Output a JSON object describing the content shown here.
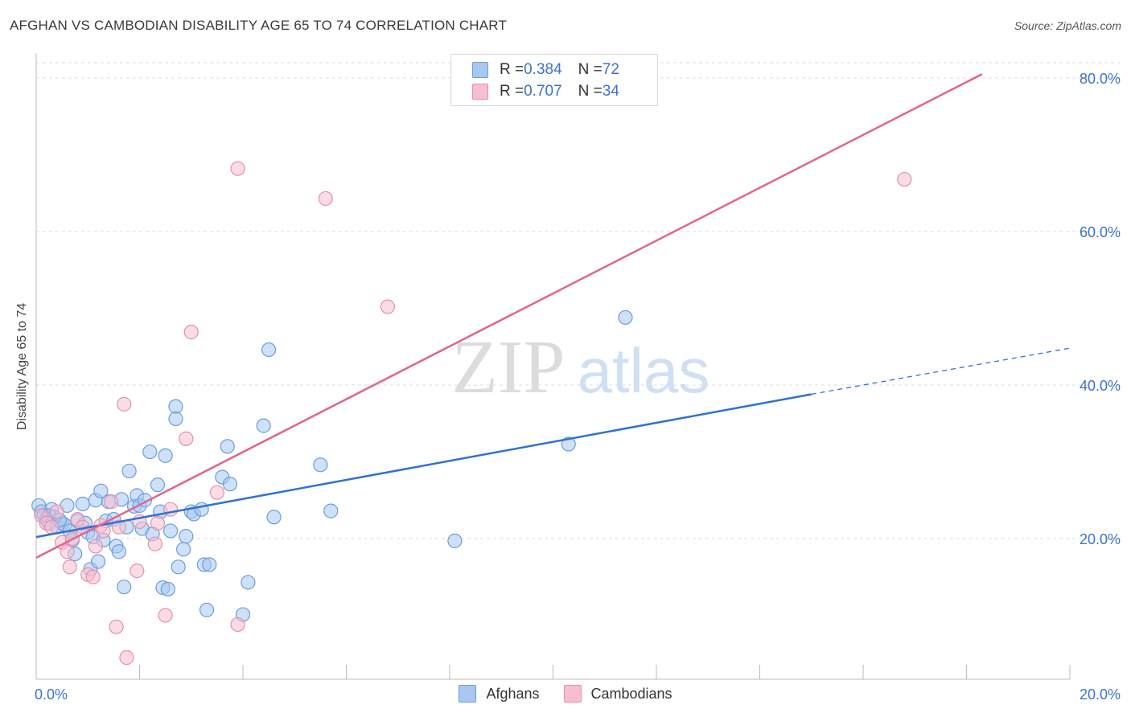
{
  "header": {
    "title": "AFGHAN VS CAMBODIAN DISABILITY AGE 65 TO 74 CORRELATION CHART",
    "source": "Source: ZipAtlas.com"
  },
  "watermark": {
    "zip": "ZIP",
    "atlas": "atlas"
  },
  "legend_top": {
    "rows": [
      {
        "r_label": "R = ",
        "r_value": "0.384",
        "n_label": "N = ",
        "n_value": "72"
      },
      {
        "r_label": "R = ",
        "r_value": "0.707",
        "n_label": "N = ",
        "n_value": "34"
      }
    ]
  },
  "legend_bottom": {
    "afghans": "Afghans",
    "cambodians": "Cambodians"
  },
  "colors": {
    "afghans_fill": "#a8c8f0",
    "afghans_stroke": "#6a9de0",
    "afghans_line": "#2f72d2",
    "cambodians_fill": "#f6bfd0",
    "cambodians_stroke": "#e78fae",
    "cambodians_line": "#e3648c",
    "tick_label": "#3b74c9",
    "grid": "#dddddd"
  },
  "chart_data": {
    "type": "scatter",
    "title": "AFGHAN VS CAMBODIAN DISABILITY AGE 65 TO 74 CORRELATION CHART",
    "xlabel": "",
    "ylabel": "Disability Age 65 to 74",
    "xlim": [
      0,
      20
    ],
    "ylim": [
      0,
      83
    ],
    "x_tick_labels": [
      {
        "value": 0,
        "label": "0.0%"
      },
      {
        "value": 20,
        "label": "20.0%"
      }
    ],
    "y_tick_labels": [
      {
        "value": 20,
        "label": "20.0%"
      },
      {
        "value": 40,
        "label": "40.0%"
      },
      {
        "value": 60,
        "label": "60.0%"
      },
      {
        "value": 80,
        "label": "80.0%"
      }
    ],
    "grid_y": [
      20,
      40,
      60,
      80
    ],
    "series": [
      {
        "name": "Afghans",
        "r": 0.384,
        "n": 72,
        "trend": {
          "x0": 0,
          "y0": 20.2,
          "x1": 15.0,
          "y1": 38.8,
          "dash_to_x": 20,
          "dash_to_y": 44.8
        },
        "points": [
          [
            0.05,
            24.3
          ],
          [
            0.1,
            23.5
          ],
          [
            0.15,
            23.0
          ],
          [
            0.2,
            22.5
          ],
          [
            0.25,
            22.0
          ],
          [
            0.3,
            23.8
          ],
          [
            0.35,
            22.8
          ],
          [
            0.4,
            21.5
          ],
          [
            0.5,
            22.0
          ],
          [
            0.55,
            21.8
          ],
          [
            0.6,
            24.3
          ],
          [
            0.65,
            21.0
          ],
          [
            0.7,
            19.8
          ],
          [
            0.75,
            18.0
          ],
          [
            0.8,
            22.3
          ],
          [
            0.9,
            24.5
          ],
          [
            0.95,
            22.0
          ],
          [
            1.0,
            20.8
          ],
          [
            1.05,
            16.0
          ],
          [
            1.1,
            20.2
          ],
          [
            1.15,
            25.0
          ],
          [
            1.2,
            17.0
          ],
          [
            1.25,
            26.2
          ],
          [
            1.3,
            19.8
          ],
          [
            1.35,
            22.3
          ],
          [
            1.4,
            24.8
          ],
          [
            1.5,
            22.5
          ],
          [
            1.55,
            19.0
          ],
          [
            1.6,
            18.3
          ],
          [
            1.65,
            25.1
          ],
          [
            1.7,
            13.7
          ],
          [
            1.75,
            21.5
          ],
          [
            1.8,
            28.8
          ],
          [
            1.9,
            24.2
          ],
          [
            1.95,
            25.6
          ],
          [
            2.0,
            24.3
          ],
          [
            2.05,
            21.3
          ],
          [
            2.1,
            25.0
          ],
          [
            2.2,
            31.3
          ],
          [
            2.25,
            20.6
          ],
          [
            2.35,
            27.0
          ],
          [
            2.4,
            23.5
          ],
          [
            2.45,
            13.6
          ],
          [
            2.5,
            30.8
          ],
          [
            2.55,
            13.4
          ],
          [
            2.6,
            21.0
          ],
          [
            2.7,
            37.2
          ],
          [
            2.75,
            16.3
          ],
          [
            2.85,
            18.6
          ],
          [
            2.9,
            20.3
          ],
          [
            3.0,
            23.5
          ],
          [
            3.05,
            23.2
          ],
          [
            3.2,
            23.8
          ],
          [
            3.25,
            16.6
          ],
          [
            3.3,
            10.7
          ],
          [
            3.35,
            16.6
          ],
          [
            3.6,
            28.0
          ],
          [
            3.7,
            32.0
          ],
          [
            3.75,
            27.1
          ],
          [
            4.0,
            10.1
          ],
          [
            4.1,
            14.3
          ],
          [
            4.4,
            34.7
          ],
          [
            4.5,
            44.6
          ],
          [
            4.6,
            22.8
          ],
          [
            5.5,
            29.6
          ],
          [
            5.7,
            23.6
          ],
          [
            8.1,
            19.7
          ],
          [
            10.3,
            32.3
          ],
          [
            11.4,
            48.8
          ],
          [
            0.25,
            23.0
          ],
          [
            0.45,
            22.4
          ],
          [
            2.7,
            35.6
          ]
        ]
      },
      {
        "name": "Cambodians",
        "r": 0.707,
        "n": 34,
        "trend": {
          "x0": 0,
          "y0": 17.5,
          "x1": 18.3,
          "y1": 80.5
        },
        "points": [
          [
            0.1,
            23.0
          ],
          [
            0.2,
            22.0
          ],
          [
            0.3,
            21.5
          ],
          [
            0.4,
            23.5
          ],
          [
            0.5,
            19.5
          ],
          [
            0.6,
            18.3
          ],
          [
            0.65,
            16.3
          ],
          [
            0.7,
            20.0
          ],
          [
            0.8,
            22.5
          ],
          [
            0.9,
            21.5
          ],
          [
            1.0,
            15.3
          ],
          [
            1.1,
            15.0
          ],
          [
            1.15,
            19.0
          ],
          [
            1.25,
            21.7
          ],
          [
            1.3,
            21.0
          ],
          [
            1.45,
            24.8
          ],
          [
            1.55,
            8.5
          ],
          [
            1.6,
            21.5
          ],
          [
            1.7,
            37.5
          ],
          [
            1.75,
            4.5
          ],
          [
            1.95,
            15.8
          ],
          [
            2.3,
            19.3
          ],
          [
            2.35,
            22.0
          ],
          [
            2.5,
            10.0
          ],
          [
            2.6,
            23.8
          ],
          [
            2.9,
            33.0
          ],
          [
            3.0,
            46.9
          ],
          [
            3.5,
            26.0
          ],
          [
            3.9,
            68.2
          ],
          [
            5.6,
            64.3
          ],
          [
            6.8,
            50.2
          ],
          [
            16.8,
            66.8
          ],
          [
            3.9,
            8.8
          ],
          [
            2.0,
            22.2
          ]
        ]
      }
    ]
  }
}
